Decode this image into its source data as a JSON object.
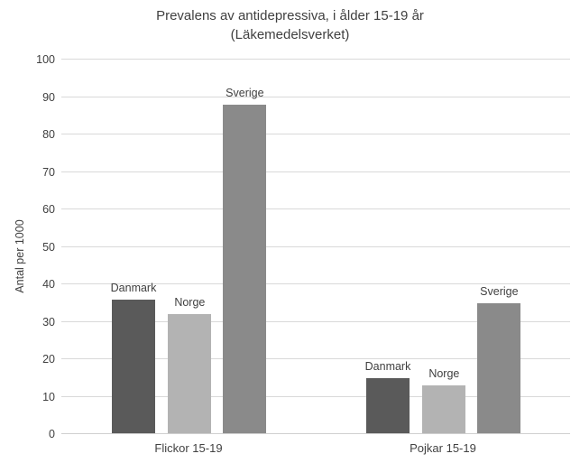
{
  "window": {
    "background_color": "#ffffff"
  },
  "chart_data": {
    "type": "bar",
    "title": "Prevalens av antidepressiva, i ålder 15-19 år",
    "subtitle": "(Läkemedelsverket)",
    "xlabel": "",
    "ylabel": "Antal per 1000",
    "ylim": [
      0,
      100
    ],
    "ytick_step": 10,
    "yticks": [
      0,
      10,
      20,
      30,
      40,
      50,
      60,
      70,
      80,
      90,
      100
    ],
    "grid": true,
    "legend_position": "none",
    "bar_labels": "series name shown above each bar",
    "categories": [
      "Flickor 15-19",
      "Pojkar 15-19"
    ],
    "series": [
      {
        "name": "Danmark",
        "color": "#5a5a5a",
        "values": [
          36,
          15
        ]
      },
      {
        "name": "Norge",
        "color": "#b3b3b3",
        "values": [
          32,
          13
        ]
      },
      {
        "name": "Sverige",
        "color": "#8a8a8a",
        "values": [
          88,
          35
        ]
      }
    ],
    "colors": {
      "gridline": "#d9d9d9",
      "axis_line": "#cfcfcf",
      "text": "#404040"
    }
  }
}
